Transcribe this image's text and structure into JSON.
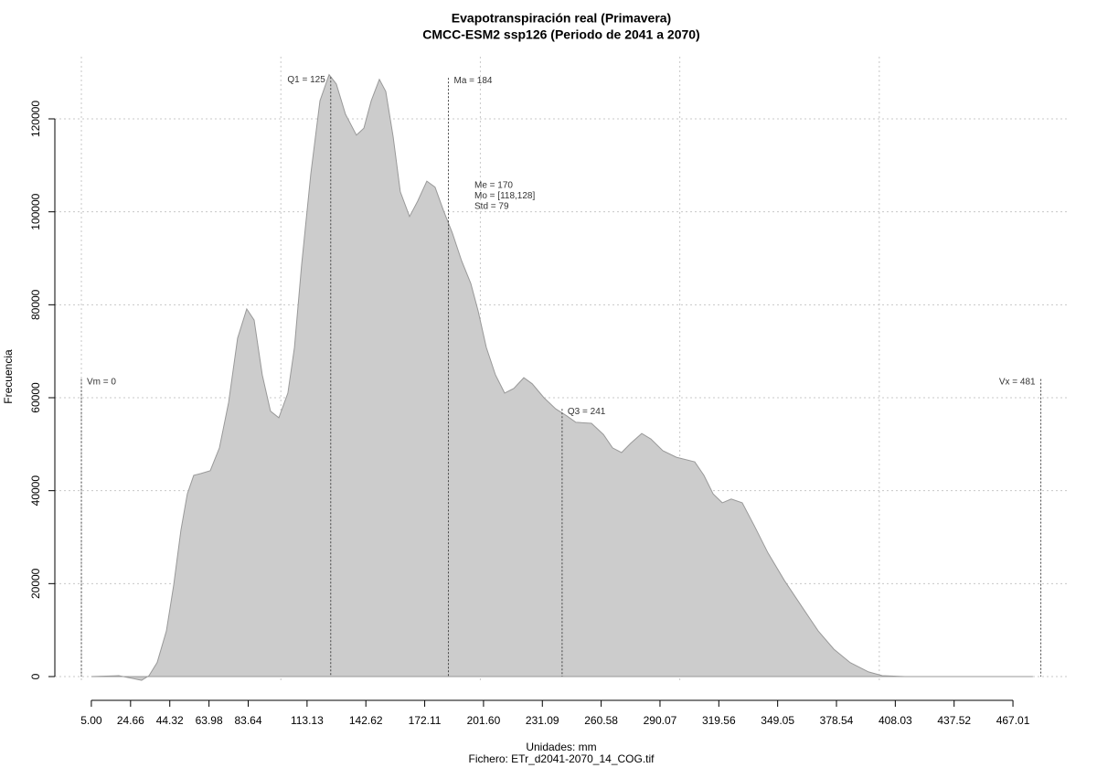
{
  "chart_data": {
    "type": "area",
    "title": "Evapotranspiración real (Primavera)",
    "subtitle": "CMCC-ESM2 ssp126 (Periodo de 2041 a 2070)",
    "xlabel": "Unidades: mm",
    "caption": "Fichero: ETr_d2041-2070_14_COG.tif",
    "ylabel": "Frecuencia",
    "color": "#cccccc",
    "line_color": "#999999",
    "grid": true,
    "x": [
      5,
      18.75,
      25.6,
      30.2,
      33.9,
      38,
      42.6,
      46.3,
      49.9,
      53.1,
      56.3,
      60,
      64.6,
      69.2,
      73.8,
      78.3,
      82.9,
      86.6,
      90.7,
      94.8,
      99,
      103.5,
      106.8,
      110.4,
      115,
      119.6,
      124.2,
      127.8,
      132.4,
      137.9,
      141.6,
      145.3,
      149.4,
      152.6,
      156.3,
      159.9,
      164.5,
      168.6,
      173.2,
      177.3,
      181.5,
      186,
      190.6,
      195.2,
      198.9,
      203,
      207.6,
      212.2,
      216.8,
      221.8,
      226,
      231.9,
      237.8,
      243.3,
      247.9,
      255.7,
      261.7,
      266.3,
      270.8,
      275.4,
      280.9,
      285.5,
      291.5,
      298.3,
      307.5,
      312.1,
      316.7,
      321.3,
      325.8,
      331.3,
      337.3,
      344.2,
      352.4,
      361.6,
      369.4,
      377.2,
      385.4,
      394.6,
      401.5,
      412.9,
      477
    ],
    "values": [
      0,
      200,
      -400,
      -800,
      200,
      3000,
      9800,
      19700,
      31500,
      39300,
      43300,
      43700,
      44300,
      49200,
      59000,
      72800,
      79100,
      76700,
      64900,
      57100,
      55700,
      61000,
      70800,
      88500,
      108200,
      123900,
      129500,
      127500,
      121000,
      116500,
      118000,
      123900,
      128500,
      125900,
      116100,
      104300,
      99000,
      102300,
      106600,
      105300,
      100300,
      95400,
      89500,
      84600,
      78700,
      70800,
      64900,
      61000,
      62000,
      64300,
      63000,
      60000,
      57600,
      56100,
      54700,
      54500,
      52100,
      49200,
      48200,
      50200,
      52300,
      51100,
      48600,
      47200,
      46200,
      43300,
      39300,
      37400,
      38200,
      37400,
      32500,
      26600,
      20700,
      14800,
      9800,
      5900,
      3000,
      1000,
      200,
      0,
      0
    ],
    "xlim": [
      -13.3,
      495.4
    ],
    "ylim": [
      -5115,
      133380
    ],
    "xticks": [
      {
        "value": 5,
        "label": "5.00"
      },
      24.66,
      44.32,
      63.98,
      83.64,
      113.13,
      142.62,
      172.11,
      {
        "value": 201.6,
        "label": "201.60"
      },
      231.09,
      260.58,
      290.07,
      319.56,
      349.05,
      378.54,
      408.03,
      437.52,
      467.01
    ],
    "yticks": [
      0,
      20000,
      40000,
      60000,
      80000,
      100000,
      120000
    ],
    "xgrid": [
      0,
      100,
      200,
      300,
      400
    ],
    "lines": [
      {
        "label": "Vm = 0",
        "x": 0,
        "y": 64000
      },
      {
        "label": "Q1 = 125",
        "x": 125,
        "y": 129000
      },
      {
        "label": "Ma = 184",
        "x": 184,
        "y": 128800
      },
      {
        "label": "Q3 = 241",
        "x": 241,
        "y": 57600
      },
      {
        "label": "Vx = 481",
        "x": 481,
        "y": 64000
      }
    ],
    "stats": [
      "Me = 170",
      "Mo = [118,128]",
      "Std = 79"
    ]
  }
}
